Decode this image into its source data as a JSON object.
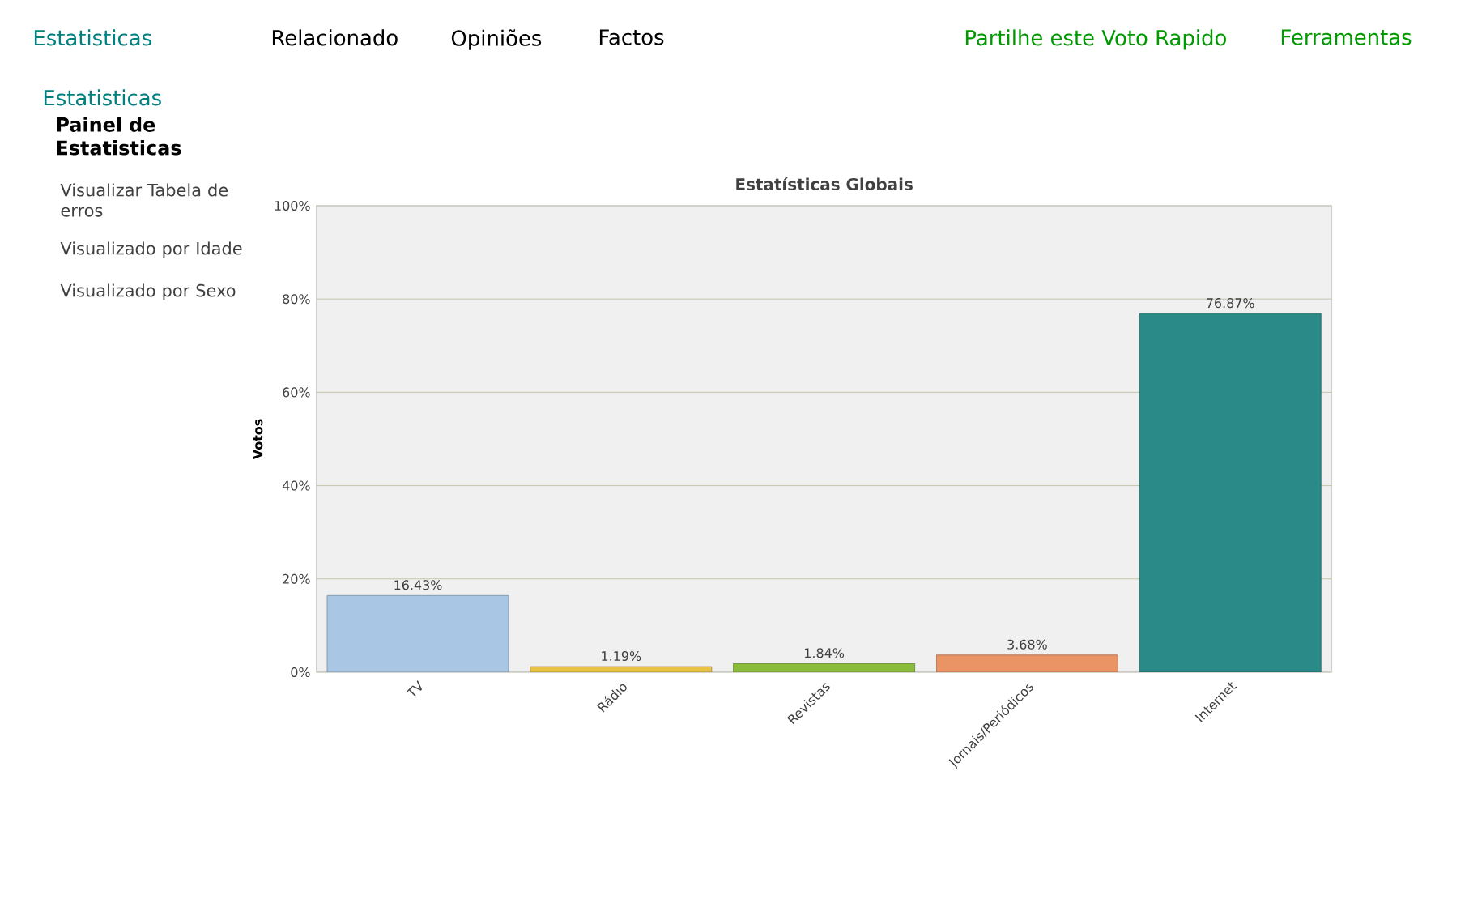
{
  "chart_data": {
    "type": "bar",
    "title": "Estatísticas Globais",
    "ylabel": "Votos",
    "categories": [
      "TV",
      "Rádio",
      "Revistas",
      "Jornais/Periódicos",
      "Internet"
    ],
    "values": [
      16.43,
      1.19,
      1.84,
      3.68,
      76.87
    ],
    "value_labels": [
      "16.43%",
      "1.19%",
      "1.84%",
      "3.68%",
      "76.87%"
    ],
    "colors": [
      "#a9c6e4",
      "#e8c244",
      "#8cbc3c",
      "#ea9466",
      "#2a8a88"
    ],
    "ylim": [
      0,
      100
    ],
    "yticks": [
      {
        "value": 0,
        "label": "0%"
      },
      {
        "value": 20,
        "label": "20%"
      },
      {
        "value": 40,
        "label": "40%"
      },
      {
        "value": 60,
        "label": "60%"
      },
      {
        "value": 80,
        "label": "80%"
      },
      {
        "value": 100,
        "label": "100%"
      }
    ],
    "grid": "y",
    "annotations": [
      "Estatisticas",
      "Relacionado",
      "Opiniões",
      "Factos",
      "Partilhe este Voto Rapido",
      "Ferramentas",
      "Estatisticas",
      "Painel de Estatisticas",
      "Visualizar Tabela de erros",
      "Visualizado por Idade",
      "Visualizado por Sexo"
    ]
  }
}
